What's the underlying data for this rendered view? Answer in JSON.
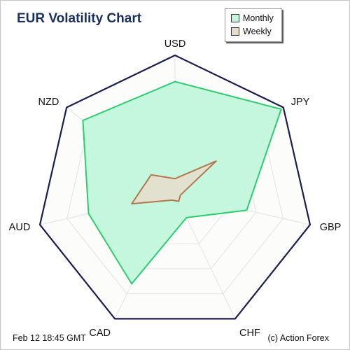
{
  "chart_data": {
    "type": "radar",
    "title": "EUR Volatility Chart",
    "categories": [
      "USD",
      "JPY",
      "GBP",
      "CHF",
      "CAD",
      "AUD",
      "NZD"
    ],
    "rmax": 10,
    "rings": 5,
    "series": [
      {
        "name": "Monthly",
        "values": [
          8.1,
          9.8,
          5.3,
          1.9,
          7.2,
          6.4,
          8.5
        ],
        "color": "#2ecc71",
        "fill": "#c5f7de"
      },
      {
        "name": "Weekly",
        "values": [
          1.1,
          3.8,
          0.4,
          0.6,
          0.5,
          3.2,
          2.2
        ],
        "color": "#b07a50",
        "fill": "#e6dccb"
      }
    ]
  },
  "footer": {
    "date": "Feb 12  18:45 GMT",
    "credit": "(c) Action Forex"
  }
}
